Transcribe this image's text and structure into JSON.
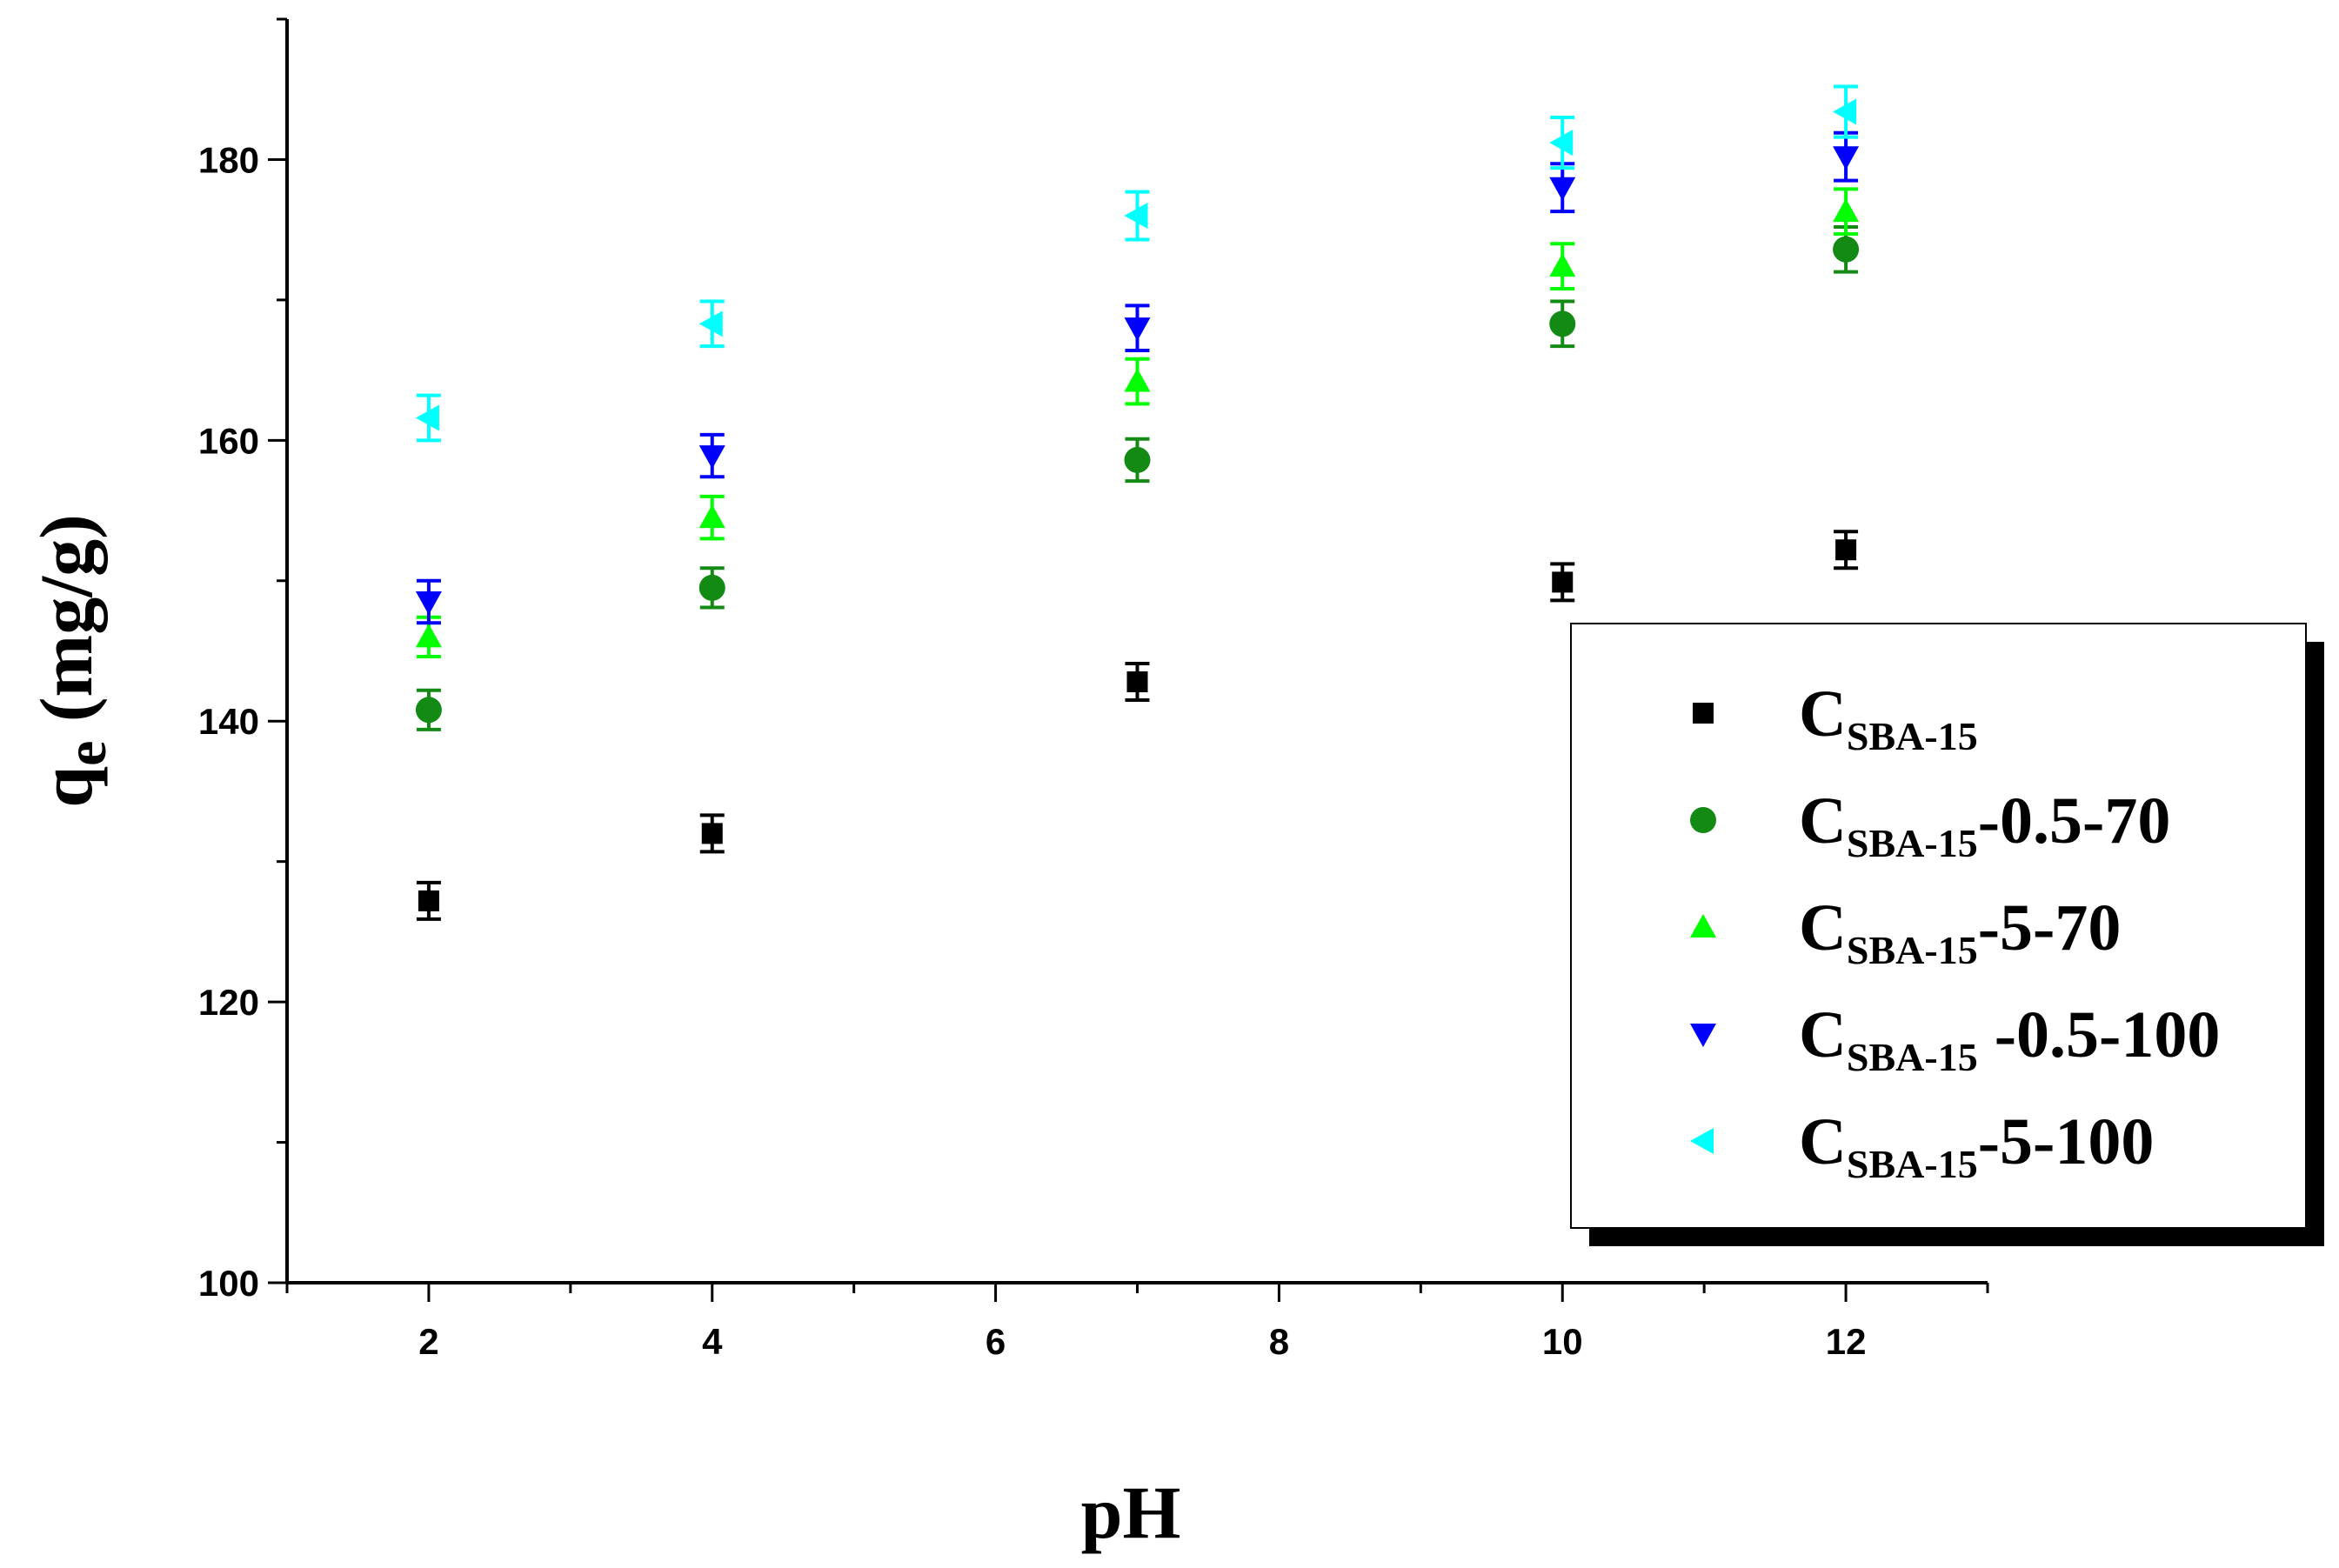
{
  "chart_data": {
    "type": "scatter",
    "title": "",
    "xlabel": "pH",
    "ylabel_main": "q",
    "ylabel_sub": "e",
    "ylabel_unit": " (mg/g)",
    "xlim": [
      1,
      13
    ],
    "ylim": [
      100,
      190
    ],
    "xticks": [
      2,
      4,
      6,
      8,
      10,
      12
    ],
    "yticks": [
      100,
      120,
      140,
      160,
      180
    ],
    "x": [
      2,
      4,
      7,
      10,
      12
    ],
    "legend_position": "right",
    "series": [
      {
        "name": "C",
        "name_sub": "SBA-15",
        "name_suffix": "",
        "marker": "square",
        "color": "#000000",
        "values": [
          127.2,
          132.0,
          142.8,
          149.9,
          152.2
        ],
        "errors": [
          1.3,
          1.3,
          1.3,
          1.3,
          1.3
        ]
      },
      {
        "name": "C",
        "name_sub": "SBA-15",
        "name_suffix": "-0.5-70",
        "marker": "circle",
        "color": "#138a13",
        "values": [
          140.8,
          149.5,
          158.6,
          168.3,
          173.6
        ],
        "errors": [
          1.4,
          1.4,
          1.5,
          1.6,
          1.6
        ]
      },
      {
        "name": "C",
        "name_sub": "SBA-15",
        "name_suffix": "-5-70",
        "marker": "triangle-up",
        "color": "#00ff00",
        "values": [
          146.0,
          154.5,
          164.2,
          172.4,
          176.3
        ],
        "errors": [
          1.4,
          1.5,
          1.6,
          1.6,
          1.6
        ]
      },
      {
        "name": "C",
        "name_sub": "SBA-15",
        "name_suffix": " -0.5-100",
        "marker": "triangle-down",
        "color": "#0000ff",
        "values": [
          148.5,
          158.9,
          168.0,
          178.0,
          180.2
        ],
        "errors": [
          1.5,
          1.5,
          1.6,
          1.7,
          1.7
        ]
      },
      {
        "name": "C",
        "name_sub": "SBA-15",
        "name_suffix": "-5-100",
        "marker": "triangle-left",
        "color": "#00ffff",
        "values": [
          161.6,
          168.3,
          176.0,
          181.2,
          183.4
        ],
        "errors": [
          1.6,
          1.6,
          1.7,
          1.8,
          1.8
        ]
      }
    ]
  }
}
